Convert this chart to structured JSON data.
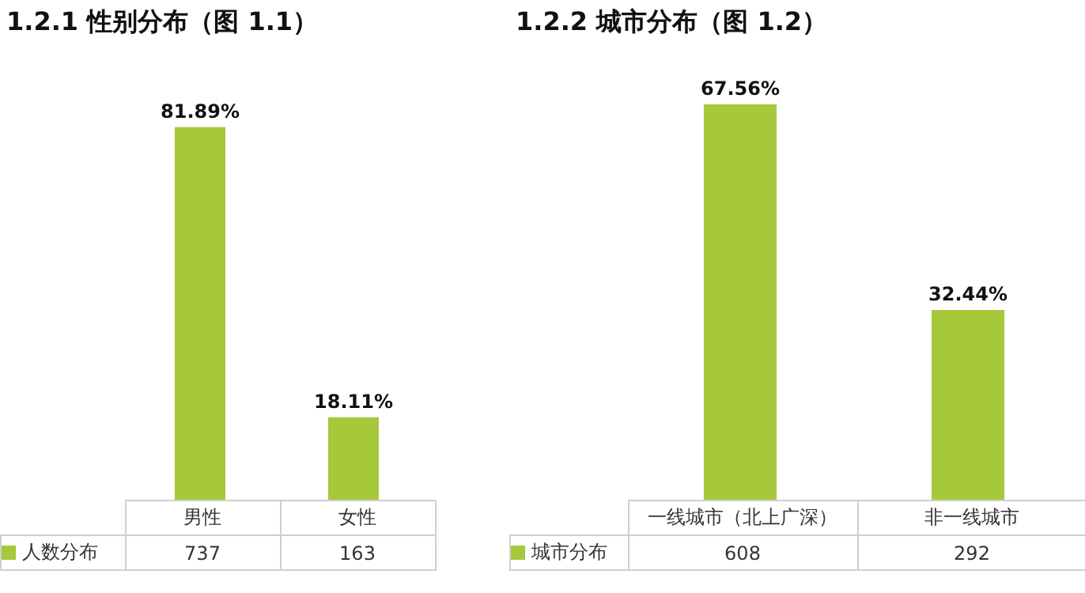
{
  "chart_data": [
    {
      "type": "bar",
      "title": "1.2.1 性别分布（图 1.1）",
      "categories": [
        "男性",
        "女性"
      ],
      "series": [
        {
          "name": "人数分布",
          "color": "#a5c93a",
          "values": [
            81.89,
            18.11
          ],
          "value_labels": [
            "81.89%",
            "18.11%"
          ]
        }
      ],
      "annotations": [
        "737",
        "163"
      ]
    },
    {
      "type": "bar",
      "title": "1.2.2 城市分布（图 1.2）",
      "categories": [
        "一线城市（北上广深）",
        "非一线城市"
      ],
      "series": [
        {
          "name": "城市分布",
          "color": "#a5c93a",
          "values": [
            67.56,
            32.44
          ],
          "value_labels": [
            "67.56%",
            "32.44%"
          ]
        }
      ],
      "annotations": [
        "608",
        "292"
      ]
    }
  ]
}
